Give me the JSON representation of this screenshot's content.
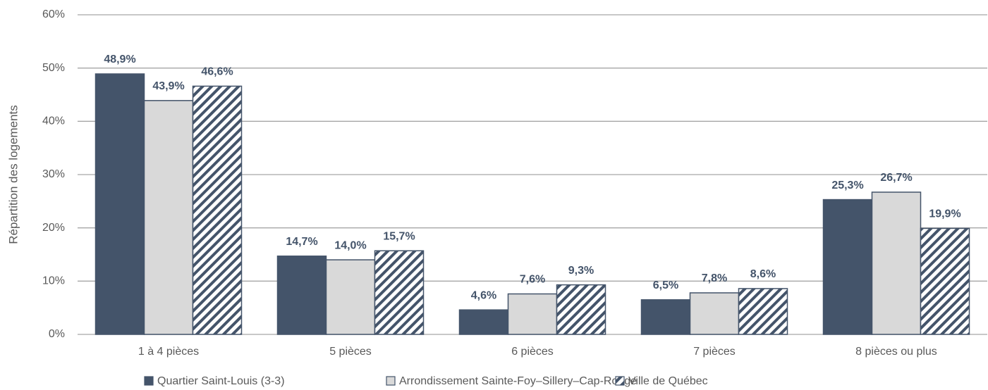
{
  "chart_data": {
    "type": "bar",
    "y_label": "Répartition des logements",
    "categories": [
      "1 à 4 pièces",
      "5 pièces",
      "6 pièces",
      "7 pièces",
      "8 pièces ou plus"
    ],
    "series": [
      {
        "name": "Quartier Saint-Louis (3-3)",
        "color": "#44546a",
        "values": [
          48.9,
          14.7,
          4.6,
          6.5,
          25.3
        ],
        "value_labels": [
          "48,9%",
          "14,7%",
          "4,6%",
          "6,5%",
          "25,3%"
        ]
      },
      {
        "name": "Arrondissement Sainte-Foy–Sillery–Cap-Rouge",
        "color": "#d9d9d9",
        "values": [
          43.9,
          14.0,
          7.6,
          7.8,
          26.7
        ],
        "value_labels": [
          "43,9%",
          "14,0%",
          "7,6%",
          "7,8%",
          "26,7%"
        ]
      },
      {
        "name": "Ville de Québec",
        "color": "#44546a",
        "hatch": true,
        "values": [
          46.6,
          15.7,
          9.3,
          8.6,
          19.9
        ],
        "value_labels": [
          "46,6%",
          "15,7%",
          "9,3%",
          "8,6%",
          "19,9%"
        ]
      }
    ],
    "ylim": [
      0,
      60
    ],
    "yticks": [
      {
        "value": 0,
        "label": "0%"
      },
      {
        "value": 10,
        "label": "10%"
      },
      {
        "value": 20,
        "label": "20%"
      },
      {
        "value": 30,
        "label": "30%"
      },
      {
        "value": 40,
        "label": "40%"
      },
      {
        "value": 50,
        "label": "50%"
      },
      {
        "value": 60,
        "label": "60%"
      }
    ],
    "grid": true,
    "legend": "bottom"
  }
}
